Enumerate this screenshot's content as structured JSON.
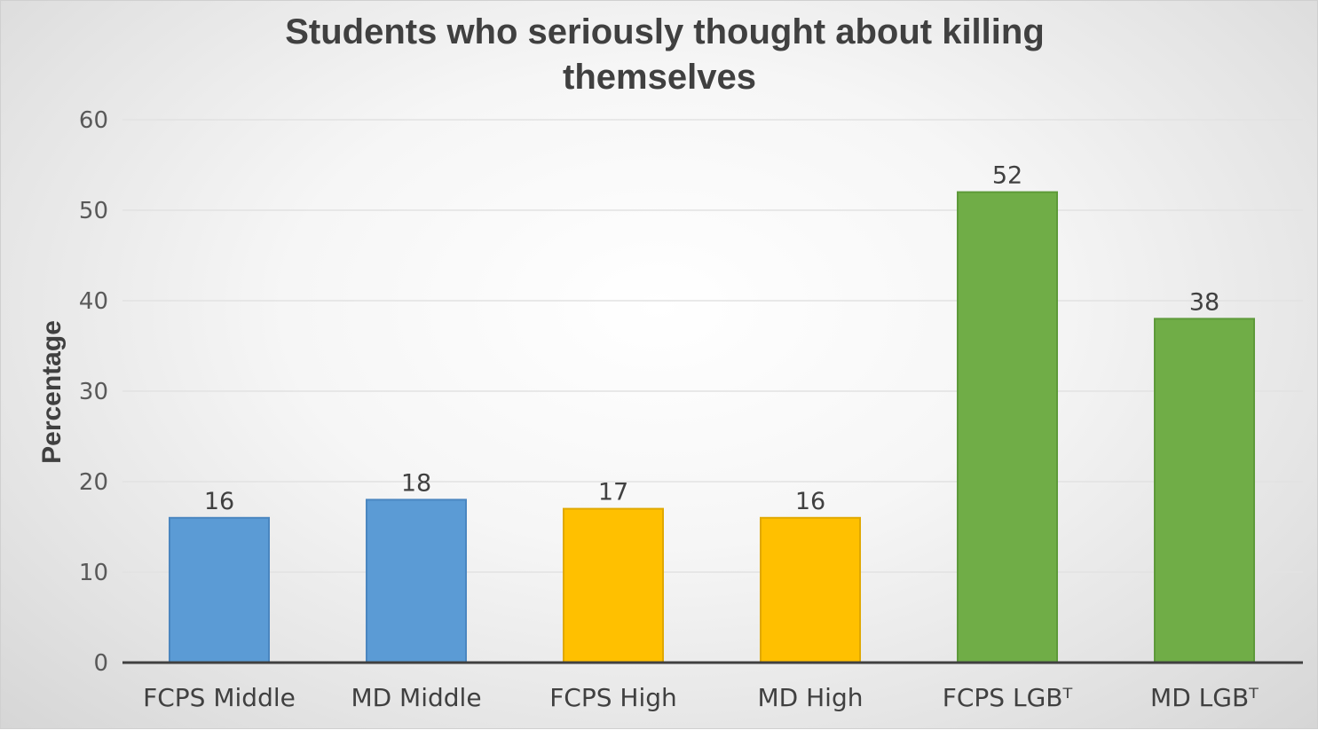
{
  "chart_data": {
    "type": "bar",
    "title": "Students who seriously thought about killing themselves",
    "title_lines": [
      "Students who seriously thought about killing",
      "themselves"
    ],
    "xlabel": "",
    "ylabel": "Percentage",
    "ylim": [
      0,
      60
    ],
    "yticks": [
      0,
      10,
      20,
      30,
      40,
      50,
      60
    ],
    "grid": true,
    "legend": "none",
    "categories": [
      "FCPS Middle",
      "MD Middle",
      "FCPS High",
      "MD High",
      "FCPS LGBT",
      "MD LGBT"
    ],
    "category_labels_shown": [
      "FCPS Middle",
      "MD Middle",
      "FCPS High",
      "MD High",
      "FCPS LGBᵀ",
      "MD LGBᵀ"
    ],
    "values": [
      16,
      18,
      17,
      16,
      52,
      38
    ],
    "data_labels": [
      "16",
      "18",
      "17",
      "16",
      "52",
      "38"
    ],
    "bar_colors": [
      "#5b9bd5",
      "#5b9bd5",
      "#ffc000",
      "#ffc000",
      "#70ad47",
      "#70ad47"
    ],
    "bar_stroke_colors": [
      "#4a86c0",
      "#4a86c0",
      "#e0a800",
      "#e0a800",
      "#5e9a3a",
      "#5e9a3a"
    ]
  }
}
